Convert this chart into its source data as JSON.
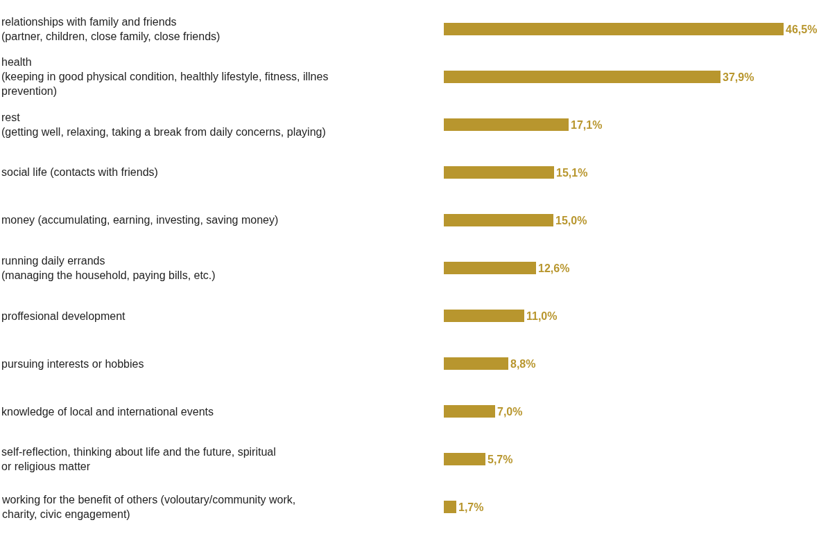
{
  "chart_data": {
    "type": "bar",
    "orientation": "horizontal",
    "categories": [
      "relationships with family and friends\n(partner, children, close family, close friends)",
      "health\n(keeping in good physical condition, healthly lifestyle, fitness, illnes\nprevention)",
      "rest\n(getting well, relaxing, taking a break from daily concerns, playing)",
      "social life (contacts with friends)",
      "money (accumulating, earning, investing, saving money)",
      "running daily errands\n(managing the household, paying bills, etc.)",
      "proffesional development",
      "pursuing interests or hobbies",
      "knowledge of local and international events",
      "self-reflection, thinking about life and the future, spiritual\nor religious matter",
      "working for the benefit of others (voloutary/community work,\ncharity, civic engagement)"
    ],
    "values": [
      46.5,
      37.9,
      17.1,
      15.1,
      15.0,
      12.6,
      11.0,
      8.8,
      7.0,
      5.7,
      1.7
    ],
    "value_labels": [
      "46,5%",
      "37,9%",
      "17,1%",
      "15,1%",
      "15,0%",
      "12,6%",
      "11,0%",
      "8,8%",
      "7,0%",
      "5,7%",
      "1,7%"
    ],
    "color": "#b8962e"
  }
}
